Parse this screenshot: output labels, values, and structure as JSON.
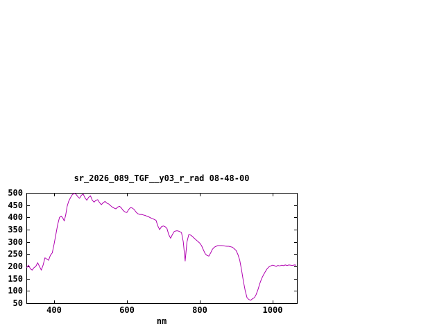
{
  "page": {
    "background": "#ffffff"
  },
  "chart_data": {
    "type": "line",
    "title": "sr_2026_089_TGF__y03_r_rad 08-48-00",
    "xlabel": "nm",
    "ylabel": "",
    "xlim": [
      324,
      1067
    ],
    "ylim": [
      50,
      500
    ],
    "xticks": [
      400,
      600,
      800,
      1000
    ],
    "yticks": [
      50,
      100,
      150,
      200,
      250,
      300,
      350,
      400,
      450,
      500
    ],
    "grid": false,
    "legend": "none",
    "axis_color": "#000000",
    "series": [
      {
        "name": "sr_2026_089_TGF__y03_r_rad",
        "color": "#b000b0",
        "x": [
          325,
          330,
          335,
          340,
          345,
          350,
          355,
          360,
          365,
          370,
          375,
          380,
          385,
          390,
          395,
          400,
          405,
          410,
          415,
          420,
          425,
          428,
          432,
          436,
          440,
          445,
          450,
          455,
          460,
          465,
          470,
          475,
          480,
          485,
          490,
          495,
          500,
          505,
          510,
          515,
          520,
          525,
          530,
          535,
          540,
          545,
          550,
          555,
          560,
          565,
          570,
          575,
          580,
          585,
          590,
          595,
          600,
          605,
          610,
          615,
          620,
          625,
          630,
          635,
          640,
          645,
          650,
          655,
          660,
          665,
          670,
          675,
          680,
          685,
          690,
          695,
          700,
          705,
          710,
          715,
          720,
          725,
          730,
          735,
          740,
          745,
          750,
          755,
          760,
          765,
          770,
          775,
          780,
          785,
          790,
          795,
          800,
          805,
          810,
          815,
          820,
          825,
          830,
          835,
          840,
          845,
          850,
          855,
          860,
          865,
          870,
          875,
          880,
          885,
          890,
          895,
          900,
          905,
          910,
          915,
          920,
          925,
          930,
          935,
          940,
          945,
          950,
          955,
          960,
          965,
          970,
          975,
          980,
          985,
          990,
          995,
          1000,
          1005,
          1010,
          1015,
          1020,
          1025,
          1030,
          1035,
          1040,
          1045,
          1050,
          1055,
          1060,
          1065
        ],
        "y": [
          195,
          205,
          190,
          185,
          195,
          200,
          215,
          200,
          185,
          205,
          235,
          230,
          225,
          245,
          255,
          290,
          330,
          370,
          400,
          405,
          395,
          385,
          410,
          445,
          465,
          480,
          492,
          498,
          495,
          485,
          478,
          490,
          495,
          480,
          470,
          482,
          488,
          470,
          462,
          470,
          472,
          460,
          452,
          460,
          465,
          458,
          455,
          448,
          442,
          438,
          435,
          442,
          445,
          438,
          428,
          422,
          420,
          432,
          440,
          438,
          432,
          422,
          415,
          412,
          412,
          410,
          408,
          405,
          402,
          398,
          395,
          392,
          388,
          365,
          350,
          362,
          365,
          362,
          355,
          330,
          315,
          330,
          342,
          345,
          345,
          342,
          338,
          300,
          222,
          300,
          330,
          328,
          322,
          315,
          308,
          302,
          295,
          285,
          268,
          252,
          245,
          242,
          255,
          270,
          278,
          282,
          285,
          285,
          285,
          284,
          283,
          282,
          282,
          280,
          278,
          272,
          265,
          248,
          225,
          185,
          140,
          100,
          72,
          65,
          62,
          68,
          72,
          85,
          105,
          130,
          150,
          165,
          178,
          190,
          198,
          202,
          205,
          203,
          200,
          204,
          202,
          205,
          203,
          206,
          204,
          206,
          205,
          204,
          206,
          205
        ]
      }
    ]
  }
}
